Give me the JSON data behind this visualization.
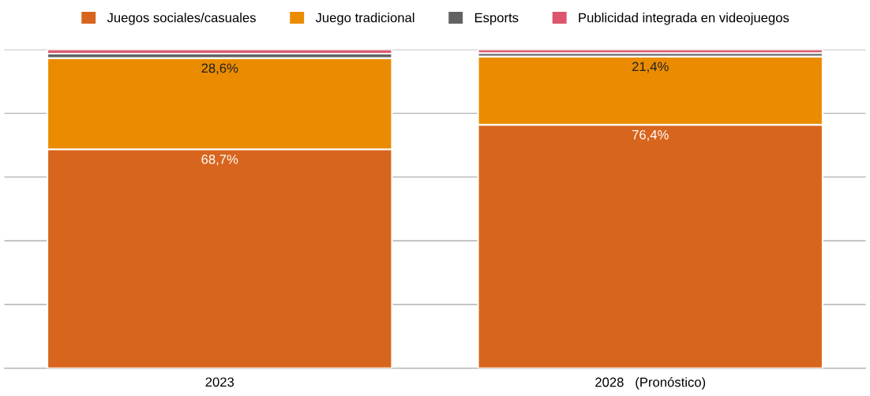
{
  "chart_data": {
    "type": "bar",
    "stacked": true,
    "categories": [
      "2023",
      "2028   (Pronóstico)"
    ],
    "series": [
      {
        "name": "Juegos sociales/casuales",
        "color": "#d8651d",
        "values": [
          68.7,
          76.4
        ],
        "value_labels": [
          "68,7%",
          "76,4%"
        ]
      },
      {
        "name": "Juego tradicional",
        "color": "#eb8c00",
        "values": [
          28.6,
          21.4
        ],
        "value_labels": [
          "28,6%",
          "21,4%"
        ]
      },
      {
        "name": "Esports",
        "color": "#626262",
        "values": [
          1.4,
          1.1
        ]
      },
      {
        "name": "Publicidad integrada en videojuegos",
        "color": "#dc566c",
        "values": [
          1.3,
          1.1
        ]
      }
    ],
    "ylim": [
      0,
      100
    ],
    "yticks": [
      {
        "value": 0,
        "label": null
      },
      {
        "value": 20,
        "label": null
      },
      {
        "value": 40,
        "label": null
      },
      {
        "value": 60,
        "label": null
      },
      {
        "value": 80,
        "label": null
      },
      {
        "value": 100,
        "label": null
      }
    ],
    "tick_labels": "x",
    "grid": "y",
    "legend": "top"
  }
}
